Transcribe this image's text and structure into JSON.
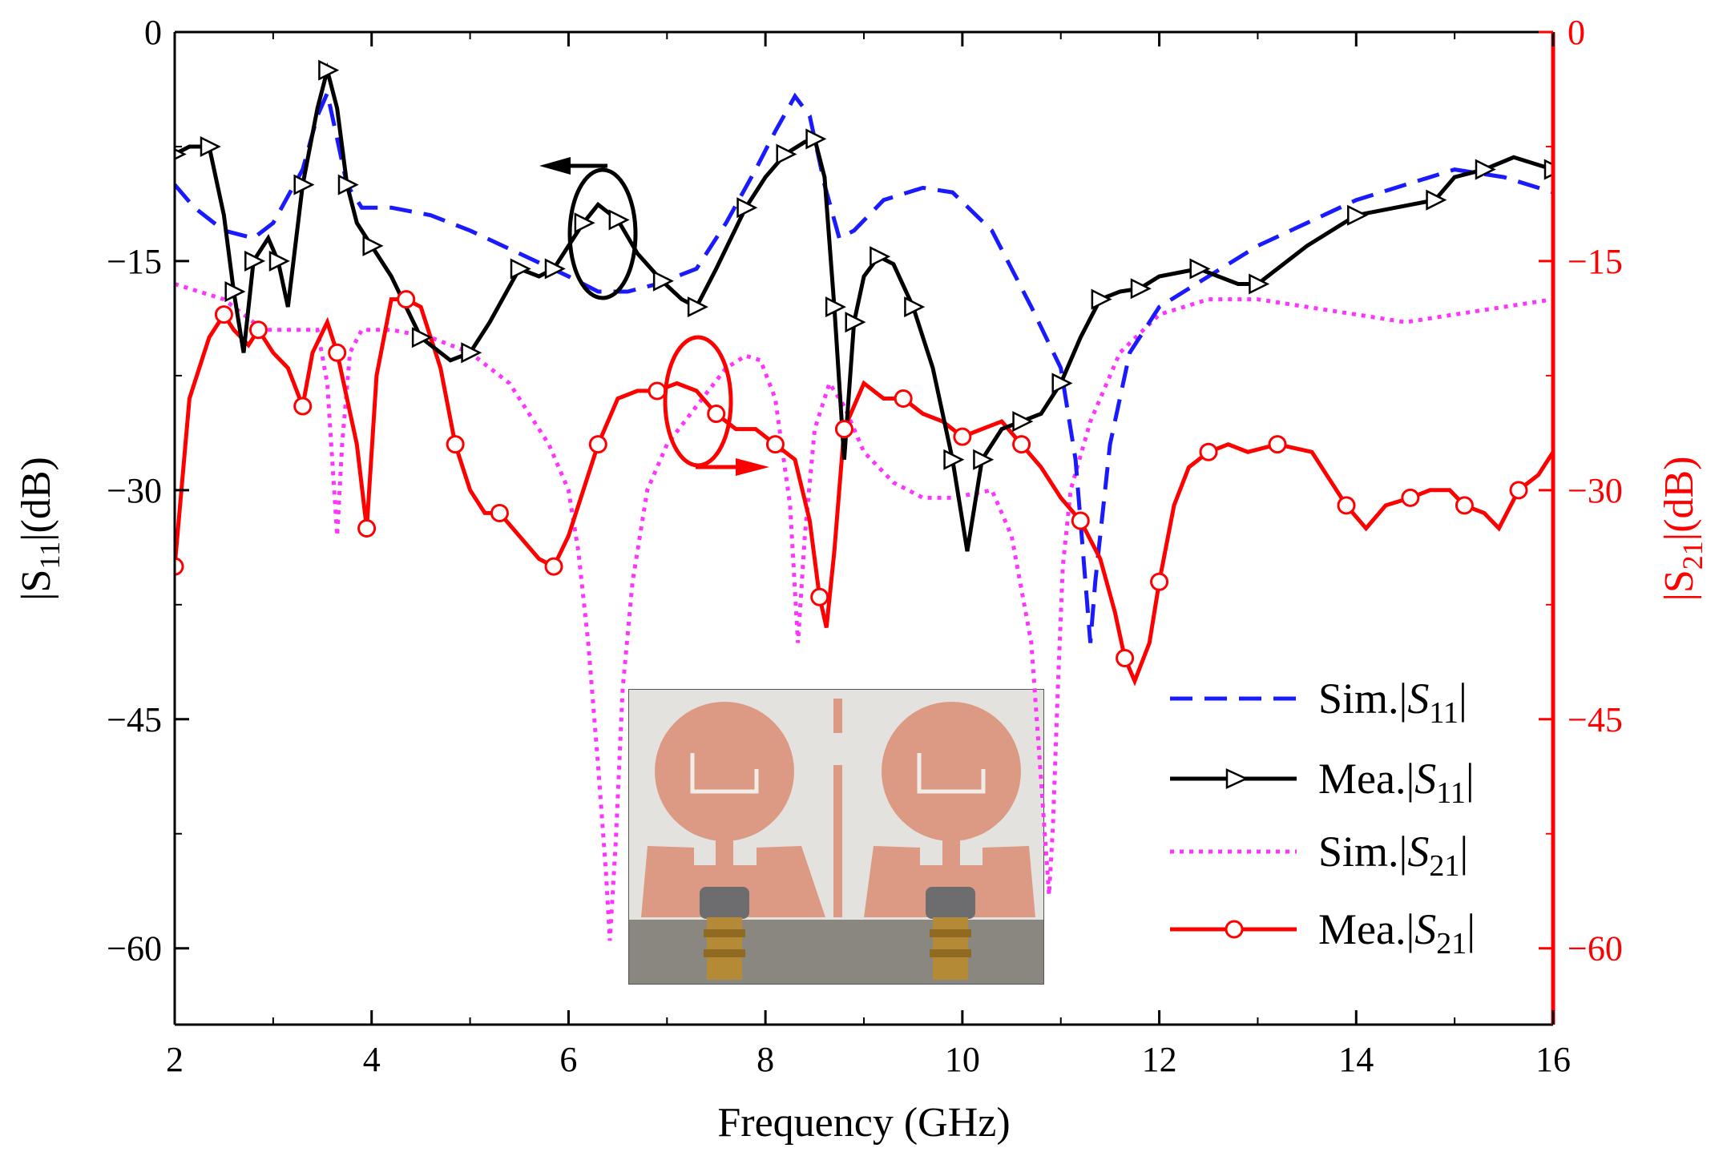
{
  "chart_data": {
    "type": "line",
    "title": "",
    "xlabel": "Frequency (GHz)",
    "ylabel_left": {
      "prefix": "|S",
      "sub": "11",
      "suffix": "|(dB)"
    },
    "ylabel_right": {
      "prefix": "|S",
      "sub": "21",
      "suffix": "|(dB)"
    },
    "xlim": [
      2,
      16
    ],
    "ylim_left": [
      -65,
      0
    ],
    "ylim_right": [
      -65,
      0
    ],
    "x_ticks": [
      2,
      4,
      6,
      8,
      10,
      12,
      14,
      16
    ],
    "x_tick_labels": [
      "2",
      "4",
      "6",
      "8",
      "10",
      "12",
      "14",
      "16"
    ],
    "y_ticks": [
      0,
      -15,
      -30,
      -45,
      -60
    ],
    "y_tick_labels_left": [
      "0",
      "−15",
      "−30",
      "−45",
      "−60"
    ],
    "y_tick_labels_right": [
      "0",
      "−15",
      "−30",
      "−45",
      "−60"
    ],
    "legend_position": "lower-right",
    "colors": {
      "sim_s11": "#1a1aff",
      "mea_s11": "#000000",
      "sim_s21": "#ff33ff",
      "mea_s21": "#ff0000",
      "right_axis": "#ff0000"
    },
    "series": [
      {
        "name": "Sim.|S11|",
        "legend": {
          "prefix": "Sim.|",
          "italic": "S",
          "sub": "11",
          "suffix": "|"
        },
        "axis": "left",
        "style": "dashed",
        "marker": "none",
        "x": [
          2,
          2.2,
          2.5,
          2.8,
          3.0,
          3.3,
          3.45,
          3.55,
          3.65,
          3.75,
          3.9,
          4.2,
          4.6,
          5.0,
          5.5,
          6.0,
          6.3,
          6.6,
          6.9,
          7.3,
          7.6,
          7.9,
          8.1,
          8.3,
          8.45,
          8.6,
          8.75,
          8.9,
          9.2,
          9.6,
          9.9,
          10.3,
          10.7,
          11.0,
          11.15,
          11.25,
          11.3,
          11.35,
          11.5,
          11.7,
          12.0,
          12.5,
          13.0,
          13.5,
          14.0,
          14.5,
          15.0,
          15.5,
          16.0
        ],
        "y": [
          -10,
          -11.5,
          -13,
          -13.5,
          -12.5,
          -9,
          -5.5,
          -4,
          -7,
          -10,
          -11.5,
          -11.5,
          -12,
          -13,
          -14.5,
          -16,
          -17,
          -17,
          -16.5,
          -15.5,
          -12.5,
          -9,
          -6.5,
          -4.2,
          -5.5,
          -10,
          -13.5,
          -13,
          -11,
          -10.2,
          -10.5,
          -13,
          -18,
          -22,
          -28,
          -36,
          -40,
          -36,
          -27,
          -21,
          -18,
          -16,
          -14,
          -12.5,
          -11,
          -10,
          -9,
          -9.5,
          -10.5
        ]
      },
      {
        "name": "Mea.|S11|",
        "legend": {
          "prefix": "Mea.|",
          "italic": "S",
          "sub": "11",
          "suffix": "|"
        },
        "axis": "left",
        "style": "solid",
        "marker": "triangle-right",
        "x": [
          2,
          2.15,
          2.35,
          2.5,
          2.6,
          2.7,
          2.8,
          2.95,
          3.05,
          3.15,
          3.3,
          3.45,
          3.55,
          3.65,
          3.75,
          3.85,
          4.0,
          4.2,
          4.5,
          4.8,
          5.0,
          5.2,
          5.5,
          5.7,
          5.85,
          6.0,
          6.15,
          6.3,
          6.5,
          6.7,
          6.95,
          7.15,
          7.3,
          7.5,
          7.8,
          8.0,
          8.2,
          8.4,
          8.5,
          8.6,
          8.7,
          8.8,
          8.9,
          9.0,
          9.15,
          9.3,
          9.5,
          9.7,
          9.9,
          10.05,
          10.2,
          10.4,
          10.6,
          10.8,
          11.0,
          11.2,
          11.4,
          11.6,
          11.8,
          12.0,
          12.4,
          12.8,
          13.0,
          13.5,
          14.0,
          14.4,
          14.8,
          15.0,
          15.3,
          15.6,
          16.0
        ],
        "y": [
          -8,
          -7.5,
          -7.5,
          -12,
          -17,
          -21,
          -15,
          -13.5,
          -15,
          -18,
          -10,
          -5,
          -2.5,
          -5,
          -10,
          -12.5,
          -14,
          -16,
          -20,
          -21.5,
          -21,
          -19,
          -15.5,
          -16,
          -15.5,
          -14,
          -12.5,
          -11.3,
          -12.3,
          -14.5,
          -16.3,
          -17.5,
          -18,
          -15.5,
          -11.5,
          -9.5,
          -8,
          -7.2,
          -7,
          -9.5,
          -18,
          -28,
          -19,
          -16,
          -14.7,
          -15.2,
          -18,
          -22,
          -28,
          -34,
          -28,
          -26,
          -25.5,
          -25,
          -23,
          -20,
          -17.5,
          -17,
          -16.8,
          -16,
          -15.5,
          -16.5,
          -16.5,
          -14,
          -12,
          -11.5,
          -11,
          -9.5,
          -9,
          -8.2,
          -9
        ]
      },
      {
        "name": "Sim.|S21|",
        "legend": {
          "prefix": "Sim.|",
          "italic": "S",
          "sub": "21",
          "suffix": "|"
        },
        "axis": "right",
        "style": "dotted",
        "marker": "none",
        "x": [
          2,
          2.5,
          2.9,
          3.2,
          3.45,
          3.55,
          3.62,
          3.65,
          3.7,
          3.78,
          3.9,
          4.2,
          4.6,
          5.0,
          5.4,
          5.8,
          6.0,
          6.1,
          6.2,
          6.3,
          6.38,
          6.42,
          6.48,
          6.55,
          6.65,
          6.8,
          7.0,
          7.3,
          7.6,
          7.8,
          7.95,
          8.1,
          8.25,
          8.33,
          8.4,
          8.5,
          8.65,
          8.8,
          9.0,
          9.3,
          9.6,
          9.9,
          10.3,
          10.5,
          10.7,
          10.8,
          10.88,
          10.92,
          10.97,
          11.02,
          11.1,
          11.3,
          11.6,
          12.0,
          12.5,
          13.0,
          13.5,
          14.0,
          14.5,
          15.0,
          15.5,
          16.0
        ],
        "y": [
          -16.5,
          -17.5,
          -19.5,
          -19.5,
          -19.5,
          -23,
          -30,
          -33,
          -27,
          -21,
          -19.5,
          -19.5,
          -20,
          -21,
          -23,
          -27,
          -30,
          -34,
          -40,
          -48,
          -55,
          -59.5,
          -53,
          -43,
          -36,
          -30,
          -27,
          -24.5,
          -22,
          -21.2,
          -21.5,
          -24,
          -31,
          -40,
          -33,
          -26,
          -23,
          -24.5,
          -27.5,
          -29.5,
          -30.5,
          -30.5,
          -30,
          -33,
          -40,
          -49,
          -56.5,
          -52,
          -43,
          -35,
          -30,
          -25.5,
          -21,
          -18.5,
          -17.5,
          -17.5,
          -18,
          -18.5,
          -19,
          -18.5,
          -18,
          -17.5
        ]
      },
      {
        "name": "Mea.|S21|",
        "legend": {
          "prefix": "Mea.|",
          "italic": "S",
          "sub": "21",
          "suffix": "|"
        },
        "axis": "right",
        "style": "solid",
        "marker": "circle",
        "x": [
          2,
          2.15,
          2.35,
          2.5,
          2.6,
          2.75,
          2.85,
          3.0,
          3.15,
          3.3,
          3.4,
          3.55,
          3.65,
          3.75,
          3.85,
          3.95,
          4.05,
          4.2,
          4.35,
          4.5,
          4.7,
          4.85,
          5.0,
          5.15,
          5.3,
          5.5,
          5.7,
          5.85,
          6.0,
          6.15,
          6.3,
          6.5,
          6.7,
          6.9,
          7.1,
          7.3,
          7.5,
          7.7,
          7.9,
          8.1,
          8.3,
          8.45,
          8.55,
          8.62,
          8.7,
          8.8,
          9.0,
          9.2,
          9.4,
          9.6,
          9.8,
          10.0,
          10.2,
          10.4,
          10.6,
          10.8,
          11.0,
          11.2,
          11.4,
          11.55,
          11.65,
          11.75,
          11.9,
          12.0,
          12.15,
          12.3,
          12.5,
          12.7,
          12.9,
          13.2,
          13.55,
          13.7,
          13.9,
          14.1,
          14.3,
          14.55,
          14.75,
          14.95,
          15.1,
          15.3,
          15.45,
          15.65,
          15.85,
          16.0
        ],
        "y": [
          -35,
          -24,
          -20,
          -18.5,
          -19.5,
          -20.5,
          -19.5,
          -21,
          -22,
          -24.5,
          -21,
          -19,
          -21,
          -24,
          -27,
          -32.5,
          -22.5,
          -17.5,
          -17.5,
          -18,
          -22,
          -27,
          -30,
          -31.5,
          -31.5,
          -33,
          -34.5,
          -35,
          -33,
          -30,
          -27,
          -24,
          -23.5,
          -23.5,
          -23,
          -23.5,
          -25,
          -26,
          -26,
          -27,
          -28,
          -32,
          -37,
          -39,
          -34,
          -26,
          -23,
          -24,
          -24,
          -25,
          -25.5,
          -26.5,
          -26,
          -25.5,
          -27,
          -28.5,
          -30.5,
          -32,
          -34.5,
          -38,
          -41,
          -42.5,
          -40,
          -36,
          -31,
          -28.5,
          -27.5,
          -27,
          -27.5,
          -27,
          -27.5,
          -29,
          -31,
          -32.5,
          -31,
          -30.5,
          -30,
          -30,
          -31,
          -31.5,
          -32.5,
          -30,
          -29,
          -27.5
        ]
      }
    ],
    "annotations": [
      {
        "type": "ellipse-arrow",
        "target_axis": "left",
        "direction": "left",
        "at": {
          "x": 6.33,
          "y": -12.5
        }
      },
      {
        "type": "ellipse-arrow",
        "target_axis": "right",
        "direction": "right",
        "at": {
          "x": 7.33,
          "y": -24
        }
      }
    ],
    "inset": {
      "type": "photo",
      "description": "fabricated two-element antenna prototype"
    }
  }
}
